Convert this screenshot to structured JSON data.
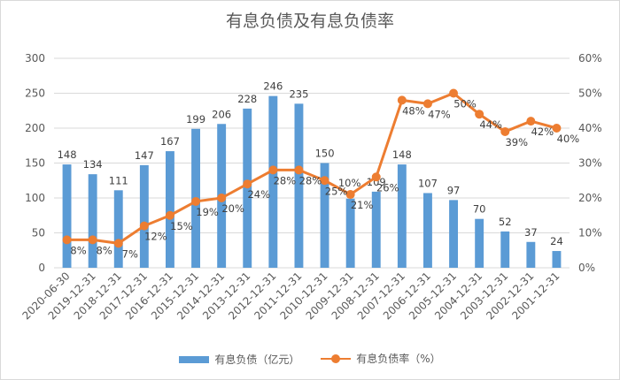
{
  "chart_data": {
    "type": "bar+line",
    "title": "有息负债及有息负债率",
    "categories": [
      "2020-06-30",
      "2019-12-31",
      "2018-12-31",
      "2017-12-31",
      "2016-12-31",
      "2015-12-31",
      "2014-12-31",
      "2013-12-31",
      "2012-12-31",
      "2011-12-31",
      "2010-12-31",
      "2009-12-31",
      "2008-12-31",
      "2007-12-31",
      "2006-12-31",
      "2005-12-31",
      "2004-12-31",
      "2003-12-31",
      "2002-12-31",
      "2001-12-31"
    ],
    "series": [
      {
        "name": "有息负债（亿元）",
        "type": "bar",
        "axis": "left",
        "color": "#5b9bd5",
        "values": [
          148,
          134,
          111,
          147,
          167,
          199,
          206,
          228,
          246,
          235,
          150,
          99,
          109,
          148,
          107,
          97,
          70,
          52,
          37,
          24
        ],
        "labels": [
          "148",
          "134",
          "111",
          "147",
          "167",
          "199",
          "206",
          "228",
          "246",
          "235",
          "150",
          "",
          "109",
          "148",
          "107",
          "97",
          "70",
          "52",
          "37",
          "24"
        ]
      },
      {
        "name": "有息负债率（%）",
        "type": "line",
        "axis": "right",
        "color": "#ed7d31",
        "values": [
          8,
          8,
          7,
          12,
          15,
          19,
          20,
          24,
          28,
          28,
          25,
          21,
          26,
          48,
          47,
          50,
          44,
          39,
          42,
          40
        ],
        "labels": [
          "8%",
          "8%",
          "7%",
          "12%",
          "15%",
          "19%",
          "20%",
          "24%",
          "28%",
          "28%",
          "25%",
          "21%",
          "26%",
          "48%",
          "47%",
          "50%",
          "44%",
          "39%",
          "42%",
          "40%"
        ]
      }
    ],
    "yleft": {
      "min": 0,
      "max": 300,
      "step": 50,
      "ticks": [
        "0",
        "50",
        "100",
        "150",
        "200",
        "250",
        "300"
      ]
    },
    "yright": {
      "min": 0,
      "max": 60,
      "step": 10,
      "ticks": [
        "0%",
        "10%",
        "20%",
        "30%",
        "40%",
        "50%",
        "60%"
      ]
    },
    "grid": true,
    "legend": "bottom",
    "overlap_label": "10%"
  }
}
